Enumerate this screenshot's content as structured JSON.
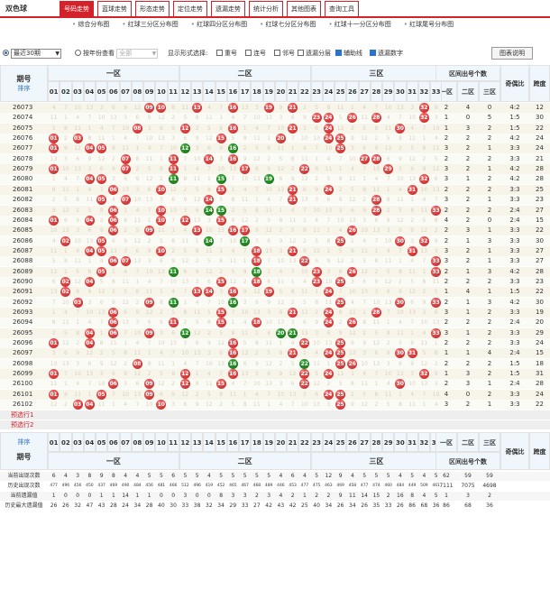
{
  "app": {
    "title": "双色球"
  },
  "tabs": [
    {
      "label": "号码走势",
      "active": true
    },
    {
      "label": "蓝球走势"
    },
    {
      "label": "形态走势"
    },
    {
      "label": "定位走势"
    },
    {
      "label": "遗漏走势"
    },
    {
      "label": "统计分析"
    },
    {
      "label": "其他图表"
    },
    {
      "label": "查询工具"
    }
  ],
  "subnav": [
    "综合分布图",
    "红球三分区分布图",
    "红球四分区分布图",
    "红球七分区分布图",
    "红球十一分区分布图",
    "红球尾号分布图"
  ],
  "options": {
    "range_value": "最近30期",
    "by_year_label": "按年份查看",
    "year_value": "全部",
    "display_label": "显示形式选择:",
    "cb_repeat": "重号",
    "cb_consecutive": "连号",
    "cb_adjacent": "邻号",
    "cb_omission_layer": "遗漏分层",
    "cb_assist_line": "辅助线",
    "cb_omission_num": "遗漏数字",
    "legend_button": "图表说明"
  },
  "header": {
    "issue_label": "期号",
    "sort_label": "排序",
    "zone1": "一区",
    "zone2": "二区",
    "zone3": "三区",
    "zone_count": "区间出号个数",
    "z1": "一区",
    "z2": "二区",
    "z3": "三区",
    "ratio": "奇偶比",
    "span": "跨度"
  },
  "numbers": [
    "01",
    "02",
    "03",
    "04",
    "05",
    "06",
    "07",
    "08",
    "09",
    "10",
    "11",
    "12",
    "13",
    "14",
    "15",
    "16",
    "17",
    "18",
    "19",
    "20",
    "21",
    "22",
    "23",
    "24",
    "25",
    "26",
    "27",
    "28",
    "29",
    "30",
    "31",
    "32",
    "33"
  ],
  "rows": [
    {
      "issue": "26073",
      "balls": [
        9,
        10,
        13,
        16,
        19,
        21,
        32
      ],
      "z": [
        2,
        4,
        0
      ],
      "ratio": "4:2",
      "span": "12"
    },
    {
      "issue": "26074",
      "balls": [
        23,
        24,
        26,
        28,
        32
      ],
      "z": [
        1,
        0,
        5
      ],
      "ratio": "1:5",
      "span": "30"
    },
    {
      "issue": "26075",
      "balls": [
        8,
        12,
        16,
        21,
        24,
        30
      ],
      "z": [
        1,
        3,
        2
      ],
      "ratio": "1:5",
      "span": "22"
    },
    {
      "issue": "26076",
      "balls": [
        1,
        3,
        15,
        20,
        24,
        25
      ],
      "z": [
        2,
        2,
        2
      ],
      "ratio": "4:2",
      "span": "24"
    },
    {
      "issue": "26077",
      "balls": [
        1,
        4,
        5,
        12,
        16,
        25
      ],
      "z": [
        3,
        2,
        1
      ],
      "ratio": "3:3",
      "span": "24"
    },
    {
      "issue": "26078",
      "balls": [
        7,
        11,
        14,
        16,
        27,
        28
      ],
      "z": [
        2,
        2,
        2
      ],
      "ratio": "3:3",
      "span": "21"
    },
    {
      "issue": "26079",
      "balls": [
        1,
        7,
        11,
        17,
        22,
        29
      ],
      "z": [
        3,
        2,
        1
      ],
      "ratio": "4:2",
      "span": "28"
    },
    {
      "issue": "26080",
      "balls": [
        4,
        5,
        11,
        15,
        19,
        32
      ],
      "z": [
        3,
        1,
        2
      ],
      "ratio": "4:2",
      "span": "28"
    },
    {
      "issue": "26081",
      "balls": [
        6,
        10,
        15,
        21,
        24,
        31
      ],
      "z": [
        2,
        2,
        2
      ],
      "ratio": "3:3",
      "span": "25"
    },
    {
      "issue": "26082",
      "balls": [
        5,
        7,
        14,
        21,
        28
      ],
      "z": [
        3,
        2,
        1
      ],
      "ratio": "3:3",
      "span": "23"
    },
    {
      "issue": "26083",
      "balls": [
        6,
        10,
        14,
        15,
        28,
        33
      ],
      "z": [
        2,
        2,
        2
      ],
      "ratio": "2:4",
      "span": "27"
    },
    {
      "issue": "26084",
      "balls": [
        1,
        4,
        6,
        10,
        12,
        15
      ],
      "z": [
        4,
        2,
        0
      ],
      "ratio": "2:4",
      "span": "15"
    },
    {
      "issue": "26085",
      "balls": [
        6,
        9,
        13,
        16,
        17,
        26
      ],
      "z": [
        2,
        3,
        1
      ],
      "ratio": "3:3",
      "span": "22"
    },
    {
      "issue": "26086",
      "balls": [
        2,
        5,
        14,
        17,
        25,
        30,
        32
      ],
      "z": [
        2,
        1,
        3
      ],
      "ratio": "3:3",
      "span": "30"
    },
    {
      "issue": "26087",
      "balls": [
        4,
        5,
        10,
        18,
        21,
        31
      ],
      "z": [
        3,
        2,
        1
      ],
      "ratio": "3:3",
      "span": "27"
    },
    {
      "issue": "26088",
      "balls": [
        6,
        7,
        18,
        22,
        33
      ],
      "z": [
        3,
        2,
        1
      ],
      "ratio": "3:3",
      "span": "27"
    },
    {
      "issue": "26089",
      "balls": [
        5,
        11,
        18,
        23,
        26,
        33
      ],
      "z": [
        2,
        1,
        3
      ],
      "ratio": "4:2",
      "span": "28"
    },
    {
      "issue": "26090",
      "balls": [
        2,
        4,
        15,
        18,
        23,
        25
      ],
      "z": [
        2,
        2,
        2
      ],
      "ratio": "3:3",
      "span": "23"
    },
    {
      "issue": "26091",
      "balls": [
        2,
        13,
        14,
        16,
        19,
        24
      ],
      "z": [
        1,
        4,
        1
      ],
      "ratio": "1:5",
      "span": "22"
    },
    {
      "issue": "26092",
      "balls": [
        3,
        9,
        11,
        16,
        25,
        30,
        33
      ],
      "z": [
        2,
        1,
        3
      ],
      "ratio": "4:2",
      "span": "30"
    },
    {
      "issue": "26093",
      "balls": [
        6,
        15,
        21,
        24,
        28
      ],
      "z": [
        3,
        1,
        2
      ],
      "ratio": "3:3",
      "span": "19"
    },
    {
      "issue": "26094",
      "balls": [
        6,
        11,
        15,
        18,
        24,
        26
      ],
      "z": [
        2,
        2,
        2
      ],
      "ratio": "2:4",
      "span": "20"
    },
    {
      "issue": "26095",
      "balls": [
        4,
        6,
        9,
        12,
        20,
        21,
        33
      ],
      "z": [
        3,
        1,
        2
      ],
      "ratio": "3:3",
      "span": "29"
    },
    {
      "issue": "26096",
      "balls": [
        1,
        4,
        16,
        22,
        25
      ],
      "z": [
        2,
        2,
        2
      ],
      "ratio": "3:3",
      "span": "24"
    },
    {
      "issue": "26097",
      "balls": [
        16,
        21,
        24,
        25,
        30,
        31
      ],
      "z": [
        1,
        1,
        4
      ],
      "ratio": "2:4",
      "span": "15"
    },
    {
      "issue": "26098",
      "balls": [
        8,
        16,
        22,
        25,
        26
      ],
      "z": [
        2,
        2,
        2
      ],
      "ratio": "1:5",
      "span": "18"
    },
    {
      "issue": "26099",
      "balls": [
        1,
        12,
        16,
        22,
        24,
        32
      ],
      "z": [
        1,
        3,
        2
      ],
      "ratio": "1:5",
      "span": "31"
    },
    {
      "issue": "26100",
      "balls": [
        6,
        9,
        12,
        15,
        22,
        30
      ],
      "z": [
        2,
        3,
        1
      ],
      "ratio": "2:4",
      "span": "28"
    },
    {
      "issue": "26101",
      "balls": [
        1,
        5,
        9,
        24,
        25
      ],
      "z": [
        4,
        0,
        2
      ],
      "ratio": "3:3",
      "span": "24"
    },
    {
      "issue": "26102",
      "balls": [
        3,
        4,
        10,
        25
      ],
      "z": [
        3,
        2,
        1
      ],
      "ratio": "3:3",
      "span": "22"
    }
  ],
  "green_cols": [
    11,
    12,
    13,
    14,
    15,
    16,
    17,
    18,
    19,
    20,
    21,
    22
  ],
  "preselect": [
    "预选行1",
    "预选行2"
  ],
  "footer": {
    "labels": [
      "当前出现次数",
      "历史出现次数",
      "当前遗漏值",
      "历史最大遗漏值"
    ],
    "rows": [
      [
        "6",
        "4",
        "3",
        "8",
        "9",
        "8",
        "4",
        "4",
        "5",
        "5",
        "6",
        "5",
        "5",
        "4",
        "5",
        "5",
        "5",
        "5",
        "5",
        "4",
        "6",
        "4",
        "5",
        "12",
        "9",
        "4",
        "5",
        "5",
        "5",
        "4",
        "5",
        "4",
        "5",
        "62",
        "59",
        "59"
      ],
      [
        "477",
        "496",
        "456",
        "450",
        "437",
        "469",
        "490",
        "484",
        "456",
        "481",
        "466",
        "512",
        "496",
        "419",
        "452",
        "465",
        "467",
        "468",
        "489",
        "446",
        "453",
        "477",
        "475",
        "463",
        "469",
        "458",
        "477",
        "474",
        "460",
        "484",
        "449",
        "509",
        "461",
        "7111",
        "7075",
        "4698"
      ],
      [
        "1",
        "0",
        "0",
        "0",
        "1",
        "1",
        "14",
        "1",
        "1",
        "0",
        "0",
        "3",
        "0",
        "0",
        "8",
        "3",
        "3",
        "2",
        "3",
        "4",
        "2",
        "1",
        "2",
        "2",
        "9",
        "11",
        "14",
        "15",
        "2",
        "16",
        "8",
        "4",
        "5",
        "1",
        "3",
        "2"
      ],
      [
        "26",
        "26",
        "32",
        "47",
        "43",
        "28",
        "24",
        "34",
        "28",
        "40",
        "30",
        "33",
        "38",
        "32",
        "34",
        "29",
        "33",
        "27",
        "42",
        "43",
        "42",
        "25",
        "40",
        "34",
        "26",
        "34",
        "26",
        "35",
        "33",
        "26",
        "86",
        "68",
        "36",
        "86",
        "68",
        "36"
      ]
    ]
  },
  "colors": {
    "accent": "#d4222a",
    "blue_ball_zone": "#2b72c9",
    "header_bg": "#f0f7fc"
  }
}
